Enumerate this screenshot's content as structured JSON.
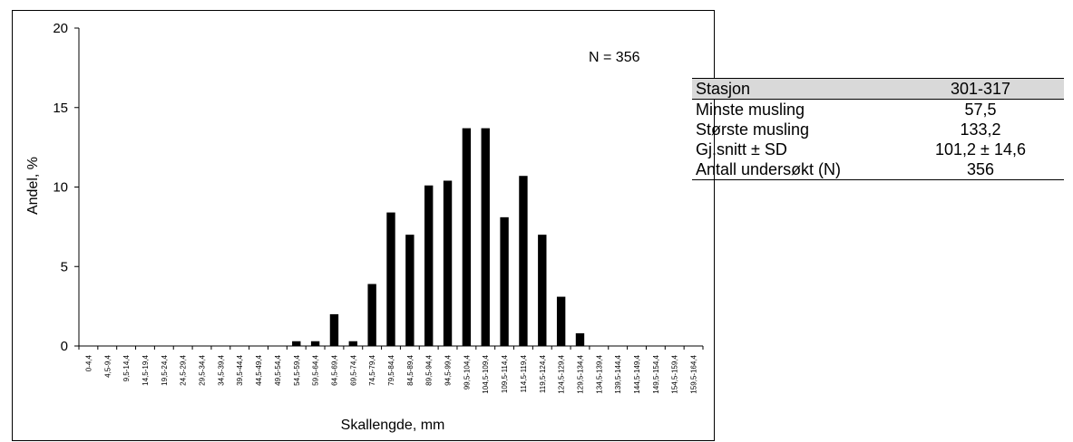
{
  "chart_data": {
    "type": "bar",
    "xlabel": "Skallengde, mm",
    "ylabel": "Andel, %",
    "ylim": [
      0,
      20
    ],
    "yticks": [
      0,
      5,
      10,
      15,
      20
    ],
    "grid": false,
    "annotation": "N = 356",
    "categories": [
      "0-4,4",
      "4,5-9,4",
      "9,5-14,4",
      "14,5-19,4",
      "19,5-24,4",
      "24,5-29,4",
      "29,5-34,4",
      "34,5-39,4",
      "39,5-44,4",
      "44,5-49,4",
      "49,5-54,4",
      "54,5-59,4",
      "59,5-64,4",
      "64,5-69,4",
      "69,5-74,4",
      "74,5-79,4",
      "79,5-84,4",
      "84,5-89,4",
      "89,5-94,4",
      "94,5-99,4",
      "99,5-104,4",
      "104,5-109,4",
      "109,5-114,4",
      "114,5-119,4",
      "119,5-124,4",
      "124,5-129,4",
      "129,5-134,4",
      "134,5-139,4",
      "139,5-144,4",
      "144,5-149,4",
      "149,5-154,4",
      "154,5-159,4",
      "159,5-164,4"
    ],
    "values": [
      0,
      0,
      0,
      0,
      0,
      0,
      0,
      0,
      0,
      0,
      0,
      0.3,
      0.3,
      2.0,
      0.3,
      3.9,
      8.4,
      7.0,
      10.1,
      10.4,
      13.7,
      13.7,
      8.1,
      10.7,
      7.0,
      3.1,
      0.8,
      0,
      0,
      0,
      0,
      0,
      0
    ],
    "bar_color": "#000000"
  },
  "stats_table": {
    "header": {
      "label": "Stasjon",
      "value": "301-317"
    },
    "rows": [
      {
        "label": "Minste musling",
        "value": "57,5"
      },
      {
        "label": "Største musling",
        "value": "133,2"
      },
      {
        "label": "Gj.snitt ± SD",
        "value": "101,2 ± 14,6"
      },
      {
        "label": "Antall undersøkt (N)",
        "value": "356"
      }
    ]
  }
}
